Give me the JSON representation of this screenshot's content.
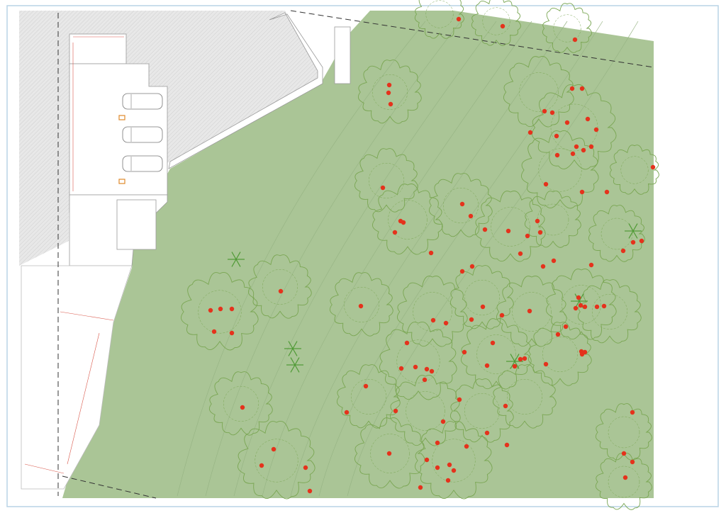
{
  "colors": {
    "frame": "#b9d3e6",
    "site_fill": "#aac596",
    "tree_outline": "#7aa653",
    "tree_marker": "#e5321c",
    "hatch_fill": "#e6e6e6",
    "dimension": "#d9574a",
    "parking_marker": "#e08a2c"
  }
}
